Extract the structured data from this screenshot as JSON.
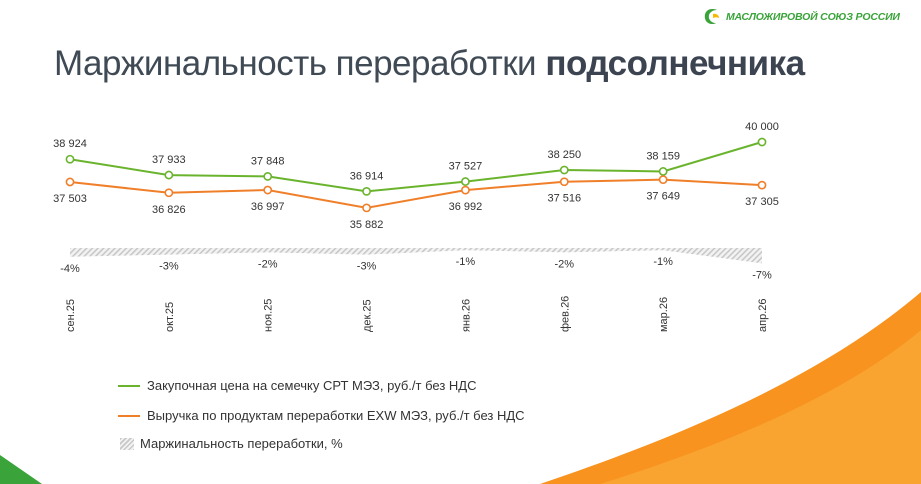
{
  "header": {
    "logo_text": "МАСЛОЖИРОВОЙ СОЮЗ РОССИИ",
    "logo_icon": "sunflower-leaf-icon",
    "title_regular": "Маржинальность переработки ",
    "title_bold": "подсолнечника"
  },
  "colors": {
    "purchase": "#6ab42d",
    "revenue": "#f07f2a",
    "margin_hatch": "#c8c8c8",
    "label_text": "#333333",
    "accent_orange": "#f7931e",
    "accent_green": "#3aa33a"
  },
  "chart_data": {
    "type": "line",
    "categories": [
      "сен.25",
      "окт.25",
      "ноя.25",
      "дек.25",
      "янв.26",
      "фев.26",
      "мар.26",
      "апр.26"
    ],
    "series": [
      {
        "name": "Закупочная цена на семечку СРТ МЭЗ, руб./т без НДС",
        "values": [
          38924,
          37933,
          37848,
          36914,
          37527,
          38250,
          38159,
          40000
        ],
        "labels": [
          "38 924",
          "37 933",
          "37 848",
          "36 914",
          "37 527",
          "38 250",
          "38 159",
          "40 000"
        ]
      },
      {
        "name": "Выручка по продуктам переработки EXW МЭЗ, руб./т без НДС",
        "values": [
          37503,
          36826,
          36997,
          35882,
          36992,
          37516,
          37649,
          37305
        ],
        "labels": [
          "37 503",
          "36 826",
          "36 997",
          "35 882",
          "36 992",
          "37 516",
          "37 649",
          "37 305"
        ]
      },
      {
        "name": "Маржинальность переработки, %",
        "type": "area",
        "values": [
          -4,
          -3,
          -2,
          -3,
          -1,
          -2,
          -1,
          -7
        ],
        "labels": [
          "-4%",
          "-3%",
          "-2%",
          "-3%",
          "-1%",
          "-2%",
          "-1%",
          "-7%"
        ]
      }
    ],
    "legend_position": "bottom-left",
    "grid": false
  }
}
